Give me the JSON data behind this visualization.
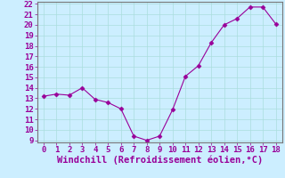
{
  "x": [
    0,
    1,
    2,
    3,
    4,
    5,
    6,
    7,
    8,
    9,
    10,
    11,
    12,
    13,
    14,
    15,
    16,
    17,
    18
  ],
  "y": [
    13.2,
    13.4,
    13.3,
    14.0,
    12.9,
    12.6,
    12.0,
    9.4,
    9.0,
    9.4,
    11.9,
    15.1,
    16.1,
    18.3,
    20.0,
    20.6,
    21.7,
    21.7,
    20.1
  ],
  "line_color": "#990099",
  "marker": "D",
  "marker_size": 2.5,
  "bg_color": "#cceeff",
  "grid_color": "#aadddd",
  "xlabel": "Windchill (Refroidissement éolien,°C)",
  "xlabel_color": "#990099",
  "xlabel_fontsize": 7.5,
  "tick_color": "#990099",
  "tick_fontsize": 6.5,
  "ylim": [
    9,
    22
  ],
  "xlim": [
    -0.5,
    18.5
  ],
  "yticks": [
    9,
    10,
    11,
    12,
    13,
    14,
    15,
    16,
    17,
    18,
    19,
    20,
    21,
    22
  ],
  "xticks": [
    0,
    1,
    2,
    3,
    4,
    5,
    6,
    7,
    8,
    9,
    10,
    11,
    12,
    13,
    14,
    15,
    16,
    17,
    18
  ]
}
